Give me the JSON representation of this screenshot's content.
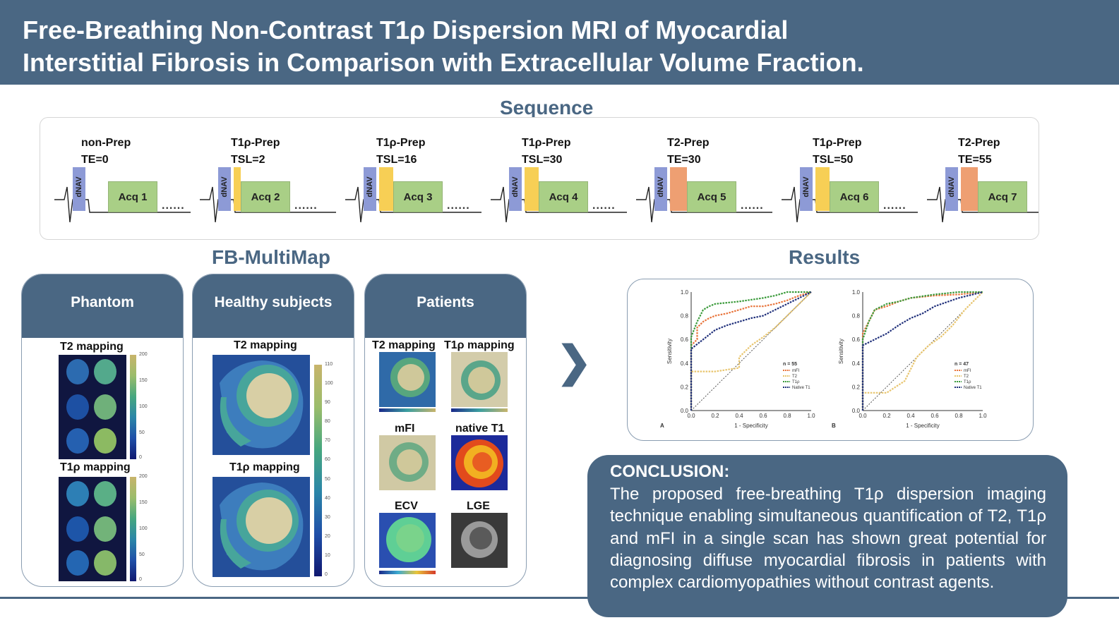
{
  "title": {
    "line1": "Free-Breathing Non-Contrast T1ρ Dispersion MRI of Myocardial",
    "line2": "Interstitial Fibrosis in Comparison with Extracellular Volume Fraction."
  },
  "sequence": {
    "heading": "Sequence",
    "nav_label": "dNAV",
    "dots": "......",
    "blocks": [
      {
        "label1": "non-Prep",
        "label2": "TE=0",
        "prep": "none",
        "acq": "Acq 1"
      },
      {
        "label1": "T1ρ-Prep",
        "label2": "TSL=2",
        "prep": "yellow",
        "acq": "Acq 2"
      },
      {
        "label1": "T1ρ-Prep",
        "label2": "TSL=16",
        "prep": "yellow",
        "acq": "Acq 3"
      },
      {
        "label1": "T1ρ-Prep",
        "label2": "TSL=30",
        "prep": "yellow",
        "acq": "Acq 4"
      },
      {
        "label1": "T2-Prep",
        "label2": "TE=30",
        "prep": "orange",
        "acq": "Acq 5"
      },
      {
        "label1": "T1ρ-Prep",
        "label2": "TSL=50",
        "prep": "yellow",
        "acq": "Acq 6"
      },
      {
        "label1": "T2-Prep",
        "label2": "TE=55",
        "prep": "orange",
        "acq": "Acq 7"
      }
    ]
  },
  "multimap": {
    "heading": "FB-MultiMap",
    "phantom": {
      "header": "Phantom",
      "t2_label": "T2 mapping",
      "t1rho_label": "T1ρ mapping",
      "t2_ticks": [
        "200",
        "150",
        "100",
        "50",
        "0"
      ],
      "t1rho_ticks": [
        "200",
        "150",
        "100",
        "50",
        "0"
      ]
    },
    "healthy": {
      "header": "Healthy subjects",
      "t2_label": "T2 mapping",
      "t1rho_label": "T1ρ mapping",
      "ticks": [
        "110",
        "100",
        "90",
        "80",
        "70",
        "60",
        "50",
        "40",
        "30",
        "20",
        "10",
        "0"
      ]
    },
    "patients": {
      "header": "Patients",
      "labels": [
        "T2 mapping",
        "T1ρ mapping",
        "mFI",
        "native T1",
        "ECV",
        "LGE"
      ]
    }
  },
  "results": {
    "heading": "Results",
    "arrow": "❯",
    "colors": {
      "mFI": "#e8743b",
      "T2": "#e8c56e",
      "T1rho": "#3a9a3a",
      "NativeT1": "#1f2f7a"
    },
    "charts": [
      {
        "panel": "A",
        "n": "n = 55",
        "xlabel": "1 - Specificity",
        "ylabel": "Sensitivity",
        "xticks": [
          "0.0",
          "0.2",
          "0.4",
          "0.6",
          "0.8",
          "1.0"
        ],
        "yticks": [
          "0.0",
          "0.2",
          "0.4",
          "0.6",
          "0.8",
          "1.0"
        ],
        "legend": [
          "mFI",
          "T2",
          "T1ρ",
          "Native T1"
        ]
      },
      {
        "panel": "B",
        "n": "n = 47",
        "xlabel": "1 - Specificity",
        "ylabel": "Sensitivity",
        "xticks": [
          "0.0",
          "0.2",
          "0.4",
          "0.6",
          "0.8",
          "1.0"
        ],
        "yticks": [
          "0.0",
          "0.2",
          "0.4",
          "0.6",
          "0.8",
          "1.0"
        ],
        "legend": [
          "mFI",
          "T2",
          "T1ρ",
          "Native T1"
        ]
      }
    ]
  },
  "chart_data": [
    {
      "type": "line",
      "panel": "A",
      "xlabel": "1 - Specificity",
      "ylabel": "Sensitivity",
      "xlim": [
        0,
        1
      ],
      "ylim": [
        0,
        1
      ],
      "annotation": "n = 55",
      "series": [
        {
          "name": "mFI",
          "x": [
            0,
            0,
            0.05,
            0.05,
            0.1,
            0.15,
            0.2,
            0.3,
            0.4,
            0.5,
            0.6,
            0.7,
            0.8,
            0.9,
            1.0
          ],
          "y": [
            0,
            0.55,
            0.6,
            0.7,
            0.75,
            0.78,
            0.8,
            0.82,
            0.85,
            0.88,
            0.88,
            0.9,
            0.93,
            0.97,
            1.0
          ]
        },
        {
          "name": "T2",
          "x": [
            0,
            0,
            0.2,
            0.4,
            0.4,
            0.5,
            0.6,
            0.7,
            0.8,
            0.9,
            1.0
          ],
          "y": [
            0,
            0.33,
            0.33,
            0.36,
            0.45,
            0.55,
            0.62,
            0.7,
            0.8,
            0.9,
            1.0
          ]
        },
        {
          "name": "T1ρ",
          "x": [
            0,
            0,
            0.05,
            0.1,
            0.15,
            0.2,
            0.4,
            0.6,
            0.7,
            0.8,
            1.0
          ],
          "y": [
            0,
            0.62,
            0.75,
            0.85,
            0.88,
            0.9,
            0.92,
            0.95,
            0.97,
            1.0,
            1.0
          ]
        },
        {
          "name": "Native T1",
          "x": [
            0,
            0,
            0.1,
            0.2,
            0.3,
            0.4,
            0.5,
            0.6,
            0.7,
            0.8,
            0.9,
            1.0
          ],
          "y": [
            0,
            0.52,
            0.6,
            0.68,
            0.72,
            0.75,
            0.78,
            0.8,
            0.85,
            0.9,
            0.95,
            1.0
          ]
        }
      ]
    },
    {
      "type": "line",
      "panel": "B",
      "xlabel": "1 - Specificity",
      "ylabel": "Sensitivity",
      "xlim": [
        0,
        1
      ],
      "ylim": [
        0,
        1
      ],
      "annotation": "n = 47",
      "series": [
        {
          "name": "mFI",
          "x": [
            0,
            0,
            0.05,
            0.1,
            0.2,
            0.3,
            0.4,
            0.6,
            0.8,
            1.0
          ],
          "y": [
            0,
            0.65,
            0.75,
            0.85,
            0.88,
            0.92,
            0.95,
            0.97,
            0.98,
            1.0
          ]
        },
        {
          "name": "T2",
          "x": [
            0,
            0,
            0.2,
            0.35,
            0.45,
            0.55,
            0.65,
            0.75,
            0.85,
            1.0
          ],
          "y": [
            0,
            0.15,
            0.15,
            0.25,
            0.45,
            0.55,
            0.62,
            0.72,
            0.85,
            1.0
          ]
        },
        {
          "name": "T1ρ",
          "x": [
            0,
            0,
            0.05,
            0.1,
            0.2,
            0.3,
            0.4,
            0.6,
            0.8,
            1.0
          ],
          "y": [
            0,
            0.6,
            0.75,
            0.85,
            0.9,
            0.92,
            0.95,
            0.98,
            1.0,
            1.0
          ]
        },
        {
          "name": "Native T1",
          "x": [
            0,
            0,
            0.1,
            0.2,
            0.3,
            0.4,
            0.5,
            0.6,
            0.8,
            1.0
          ],
          "y": [
            0,
            0.55,
            0.6,
            0.65,
            0.72,
            0.78,
            0.82,
            0.88,
            0.95,
            1.0
          ]
        }
      ]
    }
  ],
  "conclusion": {
    "heading": "CONCLUSION:",
    "text": "The proposed free-breathing T1ρ dispersion imaging technique enabling simultaneous quantification of T2, T1ρ and mFI in a single scan has shown great potential for diagnosing diffuse myocardial fibrosis in patients with complex cardiomyopathies without contrast agents."
  }
}
